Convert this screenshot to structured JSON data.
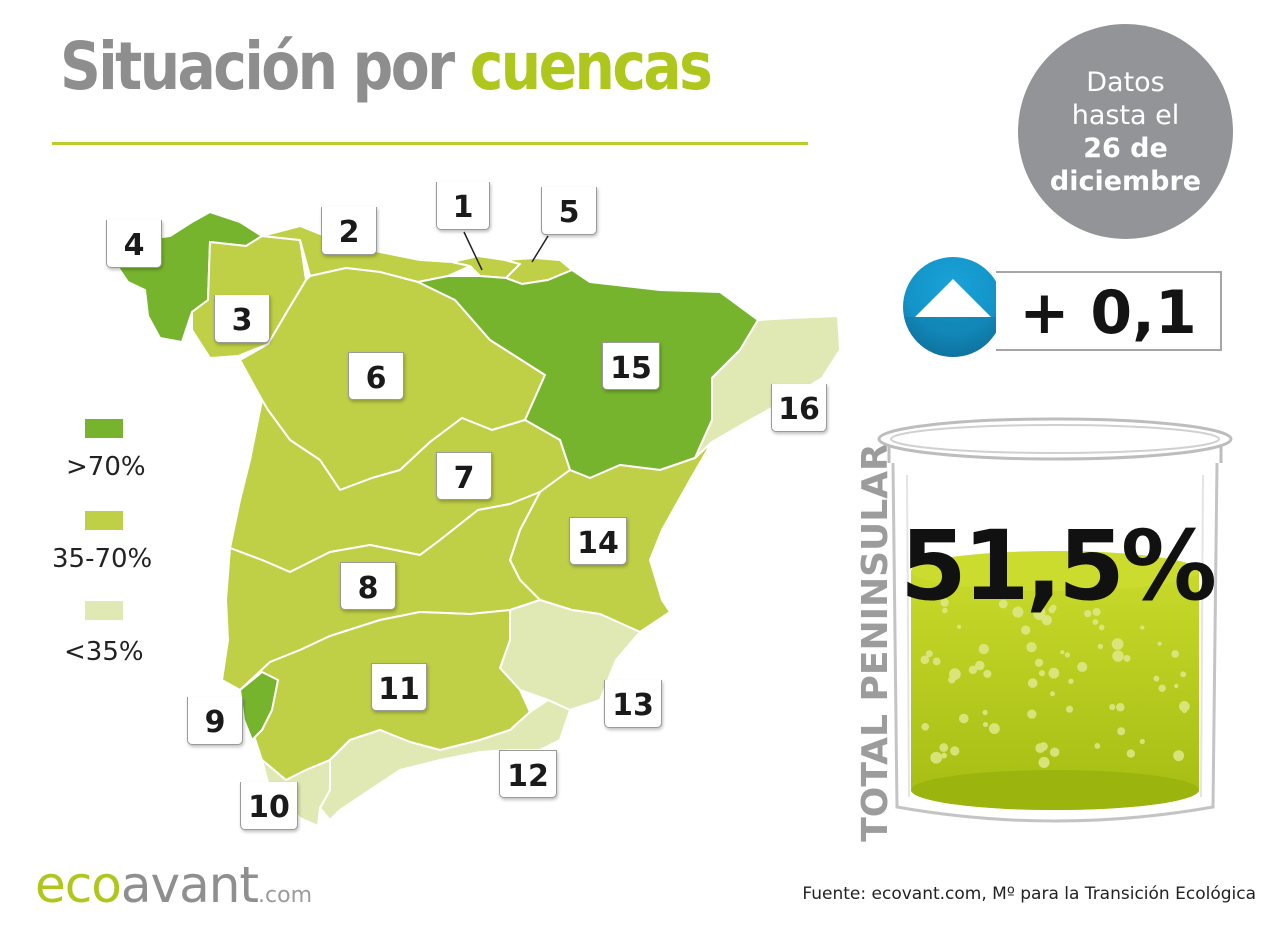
{
  "title": {
    "main": "Situación por",
    "accent": "cuencas"
  },
  "date_badge": {
    "line1": "Datos",
    "line2": "hasta el",
    "line3": "26 de",
    "line4": "diciembre"
  },
  "colors": {
    "high": "#77b42e",
    "medium": "#bfcf46",
    "low": "#e0e8b4",
    "accent": "#afc71c",
    "trend_blue": "#1393c7"
  },
  "legend": [
    {
      "label": ">70%",
      "color": "#77b42e"
    },
    {
      "label": "35-70%",
      "color": "#bfcf46"
    },
    {
      "label": "<35%",
      "color": "#e0e8b4"
    }
  ],
  "basins": [
    {
      "number": "1",
      "level": "medium"
    },
    {
      "number": "2",
      "level": "medium"
    },
    {
      "number": "3",
      "level": "medium"
    },
    {
      "number": "4",
      "level": "high"
    },
    {
      "number": "5",
      "level": "medium"
    },
    {
      "number": "6",
      "level": "medium"
    },
    {
      "number": "7",
      "level": "medium"
    },
    {
      "number": "8",
      "level": "medium"
    },
    {
      "number": "9",
      "level": "high"
    },
    {
      "number": "10",
      "level": "low"
    },
    {
      "number": "11",
      "level": "medium"
    },
    {
      "number": "12",
      "level": "low"
    },
    {
      "number": "13",
      "level": "low"
    },
    {
      "number": "14",
      "level": "medium"
    },
    {
      "number": "15",
      "level": "high"
    },
    {
      "number": "16",
      "level": "low"
    }
  ],
  "trend": {
    "icon": "up-arrow-icon",
    "value": "+ 0,1"
  },
  "total": {
    "label": "TOTAL PENINSULAR",
    "value": "51,5%",
    "percent": 51.5
  },
  "brand": {
    "name_part1": "eco",
    "name_part2": "avant",
    "tld": ".com"
  },
  "source": "Fuente: ecovant.com, Mº para la Transición Ecológica"
}
